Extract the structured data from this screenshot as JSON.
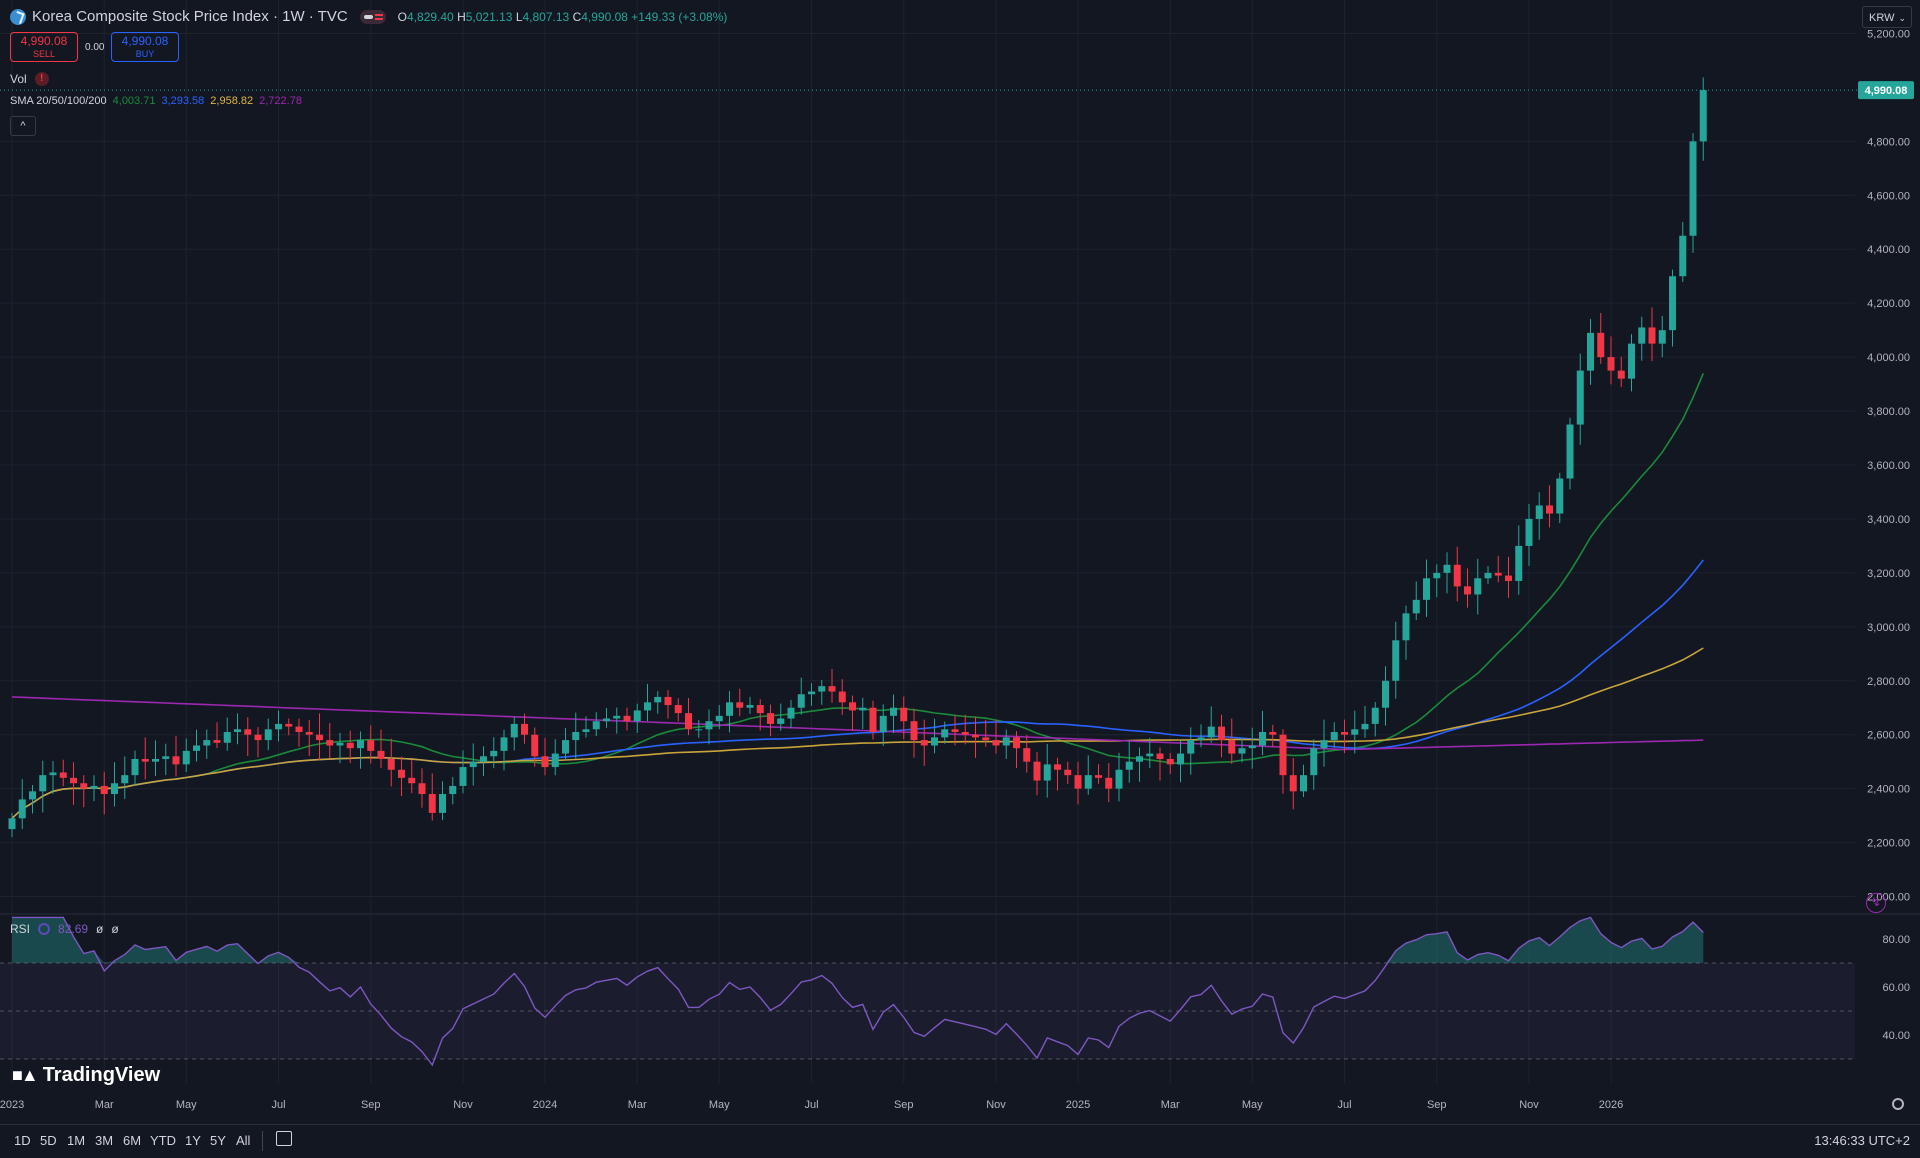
{
  "header": {
    "title": "Korea Composite Stock Price Index · 1W · TVC",
    "ohlc": {
      "o_label": "O",
      "o": "4,829.40",
      "h_label": "H",
      "h": "5,021.13",
      "l_label": "L",
      "l": "4,807.13",
      "c_label": "C",
      "c": "4,990.08",
      "change": "+149.33 (+3.08%)"
    }
  },
  "trade": {
    "sell_price": "4,990.08",
    "sell_label": "SELL",
    "buy_price": "4,990.08",
    "buy_label": "BUY",
    "spread": "0.00"
  },
  "volume": {
    "label": "Vol"
  },
  "sma": {
    "label": "SMA 20/50/100/200",
    "v20": "4,003.71",
    "v50": "3,293.58",
    "v100": "2,958.82",
    "v200": "2,722.78"
  },
  "rsi": {
    "label": "RSI",
    "value": "82.69",
    "extra1": "ø",
    "extra2": "ø"
  },
  "currency": "KRW",
  "brand": "TradingView",
  "toolbar": {
    "timeframes": [
      "1D",
      "5D",
      "1M",
      "3M",
      "6M",
      "YTD",
      "1Y",
      "5Y",
      "All"
    ],
    "clock": "13:46:33 UTC+2"
  },
  "colors": {
    "up": "#26a69a",
    "down": "#f23645",
    "sma20": "#1b8a3a",
    "sma50": "#2962ff",
    "sma100": "#c9a43a",
    "sma200": "#9c27b0",
    "rsi": "#7e57c2"
  },
  "chart_data": {
    "type": "candlestick",
    "title": "Korea Composite Stock Price Index · 1W · TVC",
    "y_axis": {
      "ticks": [
        "5,200.00",
        "4,800.00",
        "4,600.00",
        "4,400.00",
        "4,200.00",
        "4,000.00",
        "3,800.00",
        "3,600.00",
        "3,400.00",
        "3,200.00",
        "3,000.00",
        "2,800.00",
        "2,600.00",
        "2,400.00",
        "2,200.00",
        "2,000.00"
      ],
      "ylim": [
        1950,
        5250
      ],
      "last_price_label": "4,990.08"
    },
    "x_axis": {
      "ticks": [
        "2023",
        "Mar",
        "May",
        "Jul",
        "Sep",
        "Nov",
        "2024",
        "Mar",
        "May",
        "Jul",
        "Sep",
        "Nov",
        "2025",
        "Mar",
        "May",
        "Jul",
        "Sep",
        "Nov",
        "2026"
      ],
      "tick_weeks": [
        0,
        9,
        17,
        26,
        35,
        44,
        52,
        61,
        69,
        78,
        87,
        96,
        104,
        113,
        121,
        130,
        139,
        148,
        156
      ]
    },
    "weekly_close": [
      2290,
      2360,
      2390,
      2450,
      2460,
      2440,
      2420,
      2400,
      2410,
      2380,
      2420,
      2450,
      2510,
      2500,
      2510,
      2520,
      2490,
      2540,
      2560,
      2580,
      2570,
      2610,
      2620,
      2600,
      2580,
      2620,
      2640,
      2630,
      2610,
      2600,
      2580,
      2560,
      2570,
      2550,
      2580,
      2540,
      2510,
      2470,
      2440,
      2420,
      2380,
      2310,
      2380,
      2410,
      2480,
      2500,
      2520,
      2540,
      2590,
      2640,
      2600,
      2520,
      2480,
      2530,
      2580,
      2610,
      2620,
      2650,
      2660,
      2670,
      2650,
      2690,
      2720,
      2740,
      2710,
      2680,
      2620,
      2620,
      2650,
      2670,
      2720,
      2700,
      2710,
      2680,
      2640,
      2660,
      2700,
      2750,
      2760,
      2780,
      2760,
      2720,
      2690,
      2700,
      2610,
      2670,
      2700,
      2650,
      2580,
      2560,
      2590,
      2620,
      2610,
      2600,
      2590,
      2580,
      2560,
      2590,
      2550,
      2500,
      2430,
      2490,
      2470,
      2450,
      2400,
      2450,
      2440,
      2400,
      2470,
      2500,
      2520,
      2530,
      2510,
      2490,
      2530,
      2580,
      2590,
      2630,
      2580,
      2530,
      2550,
      2560,
      2610,
      2600,
      2450,
      2390,
      2450,
      2550,
      2580,
      2610,
      2600,
      2620,
      2640,
      2700,
      2800,
      2950,
      3050,
      3100,
      3180,
      3200,
      3230,
      3150,
      3120,
      3180,
      3200,
      3190,
      3170,
      3300,
      3400,
      3450,
      3420,
      3550,
      3750,
      3950,
      4090,
      4000,
      3950,
      3920,
      4050,
      4110,
      4050,
      4100,
      4300,
      4450,
      4800,
      4990
    ],
    "series": [
      {
        "name": "SMA 20",
        "last": "4,003.71"
      },
      {
        "name": "SMA 50",
        "last": "3,293.58"
      },
      {
        "name": "SMA 100",
        "last": "2,958.82"
      },
      {
        "name": "SMA 200",
        "last": "2,722.78"
      }
    ],
    "rsi": {
      "name": "RSI",
      "last": 82.69,
      "ticks": [
        "80.00",
        "60.00",
        "40.00"
      ],
      "ylim": [
        20,
        90
      ],
      "bands": [
        30,
        50,
        70
      ]
    }
  }
}
